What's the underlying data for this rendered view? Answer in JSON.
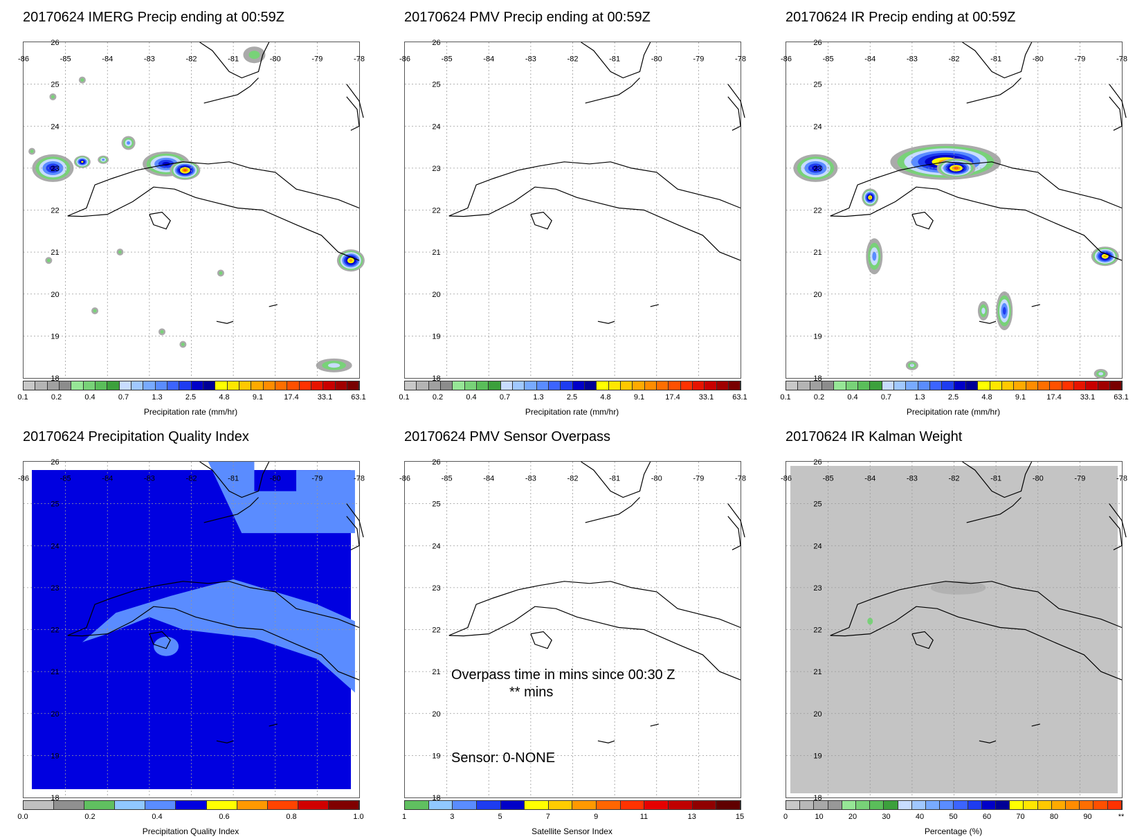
{
  "lon_labels": [
    "-86",
    "-85",
    "-84",
    "-83",
    "-82",
    "-81",
    "-80",
    "-79",
    "-78"
  ],
  "lat_labels": [
    "26",
    "25",
    "24",
    "23",
    "22",
    "21",
    "20",
    "19",
    "18"
  ],
  "panels": [
    {
      "title": "20170624 IMERG Precip ending at 00:59Z",
      "colorbar_label": "Precipitation rate (mm/hr)",
      "ticks": [
        "0.1",
        "0.2",
        "0.4",
        "0.7",
        "1.3",
        "2.5",
        "4.8",
        "9.1",
        "17.4",
        "33.1",
        "63.1"
      ]
    },
    {
      "title": "20170624 PMV Precip ending at 00:59Z",
      "colorbar_label": "Precipitation rate (mm/hr)",
      "ticks": [
        "0.1",
        "0.2",
        "0.4",
        "0.7",
        "1.3",
        "2.5",
        "4.8",
        "9.1",
        "17.4",
        "33.1",
        "63.1"
      ]
    },
    {
      "title": "20170624 IR Precip ending at 00:59Z",
      "colorbar_label": "Precipitation rate (mm/hr)",
      "ticks": [
        "0.1",
        "0.2",
        "0.4",
        "0.7",
        "1.3",
        "2.5",
        "4.8",
        "9.1",
        "17.4",
        "33.1",
        "63.1"
      ]
    },
    {
      "title": "20170624 Precipitation Quality Index",
      "colorbar_label": "Precipitation Quality Index",
      "ticks": [
        "0.0",
        "0.2",
        "0.4",
        "0.6",
        "0.8",
        "1.0"
      ]
    },
    {
      "title": "20170624 PMV Sensor Overpass",
      "colorbar_label": "Satellite Sensor Index",
      "ticks": [
        "1",
        "3",
        "5",
        "7",
        "9",
        "11",
        "13",
        "15"
      ],
      "overpass_text": "Overpass time in mins since 00:30 Z",
      "mins_text": "** mins",
      "sensor_text": "Sensor:   0-NONE"
    },
    {
      "title": "20170624 IR Kalman Weight",
      "colorbar_label": "Percentage (%)",
      "ticks": [
        "0",
        "10",
        "20",
        "30",
        "40",
        "50",
        "60",
        "70",
        "80",
        "90",
        "**"
      ]
    }
  ],
  "precip_colors": [
    "#c8c8c8",
    "#b4b4b4",
    "#a0a0a0",
    "#8c8c8c",
    "#96e696",
    "#78d278",
    "#5abe5a",
    "#3ca03c",
    "#c8dcff",
    "#a0c8ff",
    "#78aaff",
    "#5a8cff",
    "#3c64ff",
    "#1e3cf0",
    "#0000c8",
    "#000096",
    "#ffff00",
    "#ffe600",
    "#ffc800",
    "#ffaa00",
    "#ff8c00",
    "#ff6e00",
    "#ff5000",
    "#ff3200",
    "#e61400",
    "#c80000",
    "#a00000",
    "#780000"
  ],
  "pqi_colors": [
    "#c0c0c0",
    "#909090",
    "#60c060",
    "#90c8ff",
    "#5a8cff",
    "#0000e0",
    "#ffff00",
    "#ff9900",
    "#ff4400",
    "#d00000",
    "#800000"
  ],
  "sensor_colors": [
    "#60c060",
    "#90c8ff",
    "#5a8cff",
    "#1e3cf0",
    "#0000c8",
    "#ffff00",
    "#ffcc00",
    "#ff9900",
    "#ff6600",
    "#ff3300",
    "#e60000",
    "#c00000",
    "#900000",
    "#600000"
  ],
  "kalman_colors": [
    "#c8c8c8",
    "#b8b8b8",
    "#a8a8a8",
    "#989898",
    "#96e696",
    "#78d278",
    "#5abe5a",
    "#3ca03c",
    "#c8dcff",
    "#a0c8ff",
    "#78aaff",
    "#5a8cff",
    "#3c64ff",
    "#1e3cf0",
    "#0000c8",
    "#000096",
    "#ffff00",
    "#ffe600",
    "#ffc800",
    "#ffaa00",
    "#ff8c00",
    "#ff6e00",
    "#ff5000",
    "#ff3200"
  ]
}
